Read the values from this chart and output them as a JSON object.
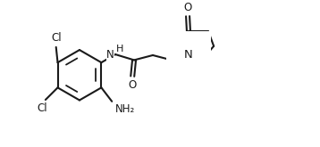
{
  "bg_color": "#ffffff",
  "line_color": "#1a1a1a",
  "line_width": 1.5,
  "font_size": 8.5,
  "figsize": [
    3.58,
    1.65
  ],
  "dpi": 100,
  "xlim": [
    0.0,
    1.75
  ],
  "ylim": [
    0.05,
    0.9
  ]
}
